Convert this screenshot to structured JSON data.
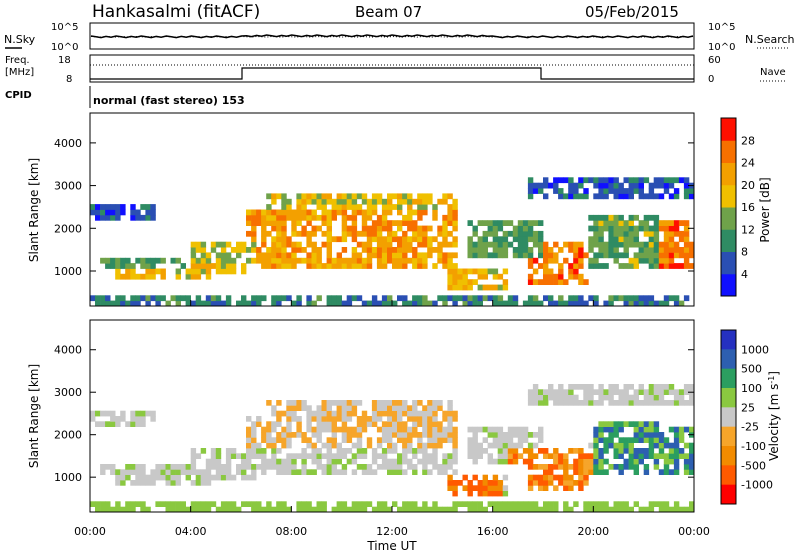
{
  "header": {
    "station": "Hankasalmi (fitACF)",
    "beam": "Beam 07",
    "date": "05/Feb/2015"
  },
  "noise_panel": {
    "left_label": "N.Sky",
    "right_label": "N.Search",
    "left_ticks": [
      "10^5",
      "10^0"
    ],
    "right_ticks": [
      "10^5",
      "10^0"
    ]
  },
  "freq_panel": {
    "left_label_1": "Freq.",
    "left_label_2": "[MHz]",
    "left_ticks": [
      "18",
      "8"
    ],
    "right_ticks": [
      "60",
      "0"
    ],
    "right_label": "Nave"
  },
  "cpid": {
    "label": "CPID",
    "text": "normal (fast stereo) 153"
  },
  "colors": {
    "power_scale": [
      "#1010ff",
      "#2a4fb3",
      "#2f8b63",
      "#6fa24a",
      "#f0c000",
      "#f3a000",
      "#f77000",
      "#ff1000"
    ],
    "velocity_scale": [
      "#ff0000",
      "#ff5a00",
      "#f28b00",
      "#f6a52a",
      "#c8c8c8",
      "#8ac840",
      "#2b9e60",
      "#2d5fb0",
      "#2530c0"
    ]
  },
  "chart_data": [
    {
      "type": "heatmap",
      "title": "",
      "xlabel": "Time UT",
      "ylabel": "Slant Range [km]",
      "xlim": [
        "00:00",
        "24:00"
      ],
      "ylim": [
        180,
        4700
      ],
      "x_ticks": [
        "00:00",
        "04:00",
        "08:00",
        "12:00",
        "16:00",
        "20:00",
        "00:00"
      ],
      "y_ticks": [
        "1000",
        "2000",
        "3000",
        "4000"
      ],
      "colorbar": {
        "label": "Power [dB]",
        "ticks": [
          "4",
          "8",
          "12",
          "16",
          "20",
          "24",
          "28"
        ],
        "range": [
          0,
          30
        ]
      }
    },
    {
      "type": "heatmap",
      "title": "",
      "xlabel": "Time UT",
      "ylabel": "Slant Range [km]",
      "xlim": [
        "00:00",
        "24:00"
      ],
      "ylim": [
        180,
        4700
      ],
      "x_ticks": [
        "00:00",
        "04:00",
        "08:00",
        "12:00",
        "16:00",
        "20:00",
        "00:00"
      ],
      "y_ticks": [
        "1000",
        "2000",
        "3000",
        "4000"
      ],
      "colorbar": {
        "label": "Velocity [m s-1]",
        "ticks": [
          "1000",
          "500",
          "100",
          "25",
          "-25",
          "-100",
          "-500",
          "-1000"
        ]
      }
    }
  ]
}
